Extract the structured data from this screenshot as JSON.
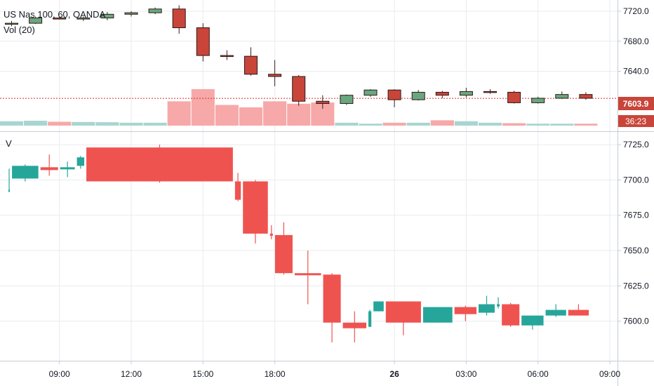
{
  "header": {
    "title": "US Nas 100, 60, OANDA",
    "volume_label": "Vol (20)"
  },
  "lower_pane": {
    "label": "V"
  },
  "colors": {
    "up": "#26a69a",
    "down": "#ef5350",
    "up_top": "#6aa77f",
    "down_top": "#c9453a",
    "vol_up": "#a7d6cf",
    "vol_down": "#f6a9a8",
    "grid": "#e9ebef",
    "price_line": "#d32f2f"
  },
  "price_badge": {
    "price": "7603.9",
    "countdown": "36:23"
  },
  "chart_data": [
    {
      "type": "candlestick",
      "pane": "upper",
      "y_ticks": [
        "7720.0",
        "7680.0",
        "7640.0"
      ],
      "ylim": [
        7560,
        7735
      ],
      "x_ticks": [
        "09:00",
        "12:00",
        "15:00",
        "18:00",
        "26",
        "03:00",
        "06:00",
        "09:00"
      ],
      "current_price": 7603.9,
      "candles": [
        {
          "o": 7704,
          "h": 7707,
          "l": 7700,
          "c": 7704
        },
        {
          "o": 7704,
          "h": 7713,
          "l": 7703,
          "c": 7711
        },
        {
          "o": 7711,
          "h": 7713,
          "l": 7709,
          "c": 7710
        },
        {
          "o": 7710,
          "h": 7713,
          "l": 7707,
          "c": 7711
        },
        {
          "o": 7711,
          "h": 7719,
          "l": 7708,
          "c": 7716
        },
        {
          "o": 7716,
          "h": 7720,
          "l": 7713,
          "c": 7718
        },
        {
          "o": 7718,
          "h": 7725,
          "l": 7716,
          "c": 7723
        },
        {
          "o": 7723,
          "h": 7728,
          "l": 7690,
          "c": 7698
        },
        {
          "o": 7698,
          "h": 7704,
          "l": 7653,
          "c": 7661
        },
        {
          "o": 7661,
          "h": 7668,
          "l": 7655,
          "c": 7660
        },
        {
          "o": 7660,
          "h": 7672,
          "l": 7634,
          "c": 7636
        },
        {
          "o": 7636,
          "h": 7655,
          "l": 7620,
          "c": 7633
        },
        {
          "o": 7633,
          "h": 7635,
          "l": 7594,
          "c": 7600
        },
        {
          "o": 7600,
          "h": 7608,
          "l": 7590,
          "c": 7597
        },
        {
          "o": 7597,
          "h": 7609,
          "l": 7595,
          "c": 7608
        },
        {
          "o": 7608,
          "h": 7616,
          "l": 7606,
          "c": 7615
        },
        {
          "o": 7615,
          "h": 7616,
          "l": 7592,
          "c": 7602
        },
        {
          "o": 7602,
          "h": 7615,
          "l": 7601,
          "c": 7612
        },
        {
          "o": 7612,
          "h": 7614,
          "l": 7604,
          "c": 7608
        },
        {
          "o": 7608,
          "h": 7618,
          "l": 7605,
          "c": 7613
        },
        {
          "o": 7613,
          "h": 7616,
          "l": 7610,
          "c": 7612
        },
        {
          "o": 7612,
          "h": 7614,
          "l": 7597,
          "c": 7598
        },
        {
          "o": 7598,
          "h": 7606,
          "l": 7597,
          "c": 7604
        },
        {
          "o": 7604,
          "h": 7613,
          "l": 7603,
          "c": 7609
        },
        {
          "o": 7609,
          "h": 7612,
          "l": 7602,
          "c": 7604
        }
      ],
      "volume": [
        {
          "v": 18,
          "up": true
        },
        {
          "v": 20,
          "up": true
        },
        {
          "v": 16,
          "up": false
        },
        {
          "v": 15,
          "up": true
        },
        {
          "v": 14,
          "up": true
        },
        {
          "v": 12,
          "up": true
        },
        {
          "v": 12,
          "up": true
        },
        {
          "v": 100,
          "up": false
        },
        {
          "v": 150,
          "up": false
        },
        {
          "v": 85,
          "up": false
        },
        {
          "v": 75,
          "up": false
        },
        {
          "v": 100,
          "up": false
        },
        {
          "v": 90,
          "up": false
        },
        {
          "v": 95,
          "up": false
        },
        {
          "v": 12,
          "up": true
        },
        {
          "v": 8,
          "up": true
        },
        {
          "v": 12,
          "up": false
        },
        {
          "v": 12,
          "up": true
        },
        {
          "v": 22,
          "up": false
        },
        {
          "v": 18,
          "up": true
        },
        {
          "v": 12,
          "up": true
        },
        {
          "v": 10,
          "up": false
        },
        {
          "v": 8,
          "up": true
        },
        {
          "v": 8,
          "up": true
        },
        {
          "v": 8,
          "up": false
        }
      ]
    },
    {
      "type": "equivolume-candlestick",
      "pane": "lower",
      "y_ticks": [
        "7725.0",
        "7700.0",
        "7675.0",
        "7650.0",
        "7625.0",
        "7600.0"
      ],
      "ylim": [
        7572,
        7734
      ],
      "boxes": [
        {
          "o": 7693,
          "h": 7708,
          "l": 7693,
          "c": 7693,
          "w": 1
        },
        {
          "o": 7701,
          "h": 7711,
          "l": 7699,
          "c": 7710,
          "w": 18
        },
        {
          "o": 7709,
          "h": 7718,
          "l": 7703,
          "c": 7707,
          "w": 12
        },
        {
          "o": 7708,
          "h": 7713,
          "l": 7702,
          "c": 7709,
          "w": 10
        },
        {
          "o": 7710,
          "h": 7717,
          "l": 7708,
          "c": 7716,
          "w": 5
        },
        {
          "o": 7723,
          "h": 7725,
          "l": 7698,
          "c": 7699,
          "w": 100
        },
        {
          "o": 7699,
          "h": 7705,
          "l": 7685,
          "c": 7686,
          "w": 4
        },
        {
          "o": 7699,
          "h": 7700,
          "l": 7655,
          "c": 7662,
          "w": 17
        },
        {
          "o": 7662,
          "h": 7668,
          "l": 7658,
          "c": 7661,
          "w": 2
        },
        {
          "o": 7661,
          "h": 7670,
          "l": 7633,
          "c": 7634,
          "w": 12
        },
        {
          "o": 7634,
          "h": 7650,
          "l": 7612,
          "c": 7633,
          "w": 18
        },
        {
          "o": 7633,
          "h": 7634,
          "l": 7585,
          "c": 7599,
          "w": 12
        },
        {
          "o": 7599,
          "h": 7607,
          "l": 7585,
          "c": 7595,
          "w": 16
        },
        {
          "o": 7596,
          "h": 7608,
          "l": 7596,
          "c": 7607,
          "w": 2
        },
        {
          "o": 7607,
          "h": 7614,
          "l": 7607,
          "c": 7614,
          "w": 7
        },
        {
          "o": 7614,
          "h": 7614,
          "l": 7590,
          "c": 7599,
          "w": 24
        },
        {
          "o": 7599,
          "h": 7610,
          "l": 7599,
          "c": 7610,
          "w": 20
        },
        {
          "o": 7610,
          "h": 7611,
          "l": 7600,
          "c": 7605,
          "w": 15
        },
        {
          "o": 7606,
          "h": 7618,
          "l": 7604,
          "c": 7612,
          "w": 11
        },
        {
          "o": 7612,
          "h": 7617,
          "l": 7609,
          "c": 7612,
          "w": 2
        },
        {
          "o": 7612,
          "h": 7613,
          "l": 7596,
          "c": 7597,
          "w": 12
        },
        {
          "o": 7597,
          "h": 7604,
          "l": 7594,
          "c": 7604,
          "w": 15
        },
        {
          "o": 7604,
          "h": 7612,
          "l": 7603,
          "c": 7608,
          "w": 14
        },
        {
          "o": 7608,
          "h": 7612,
          "l": 7604,
          "c": 7604,
          "w": 14
        }
      ]
    }
  ]
}
